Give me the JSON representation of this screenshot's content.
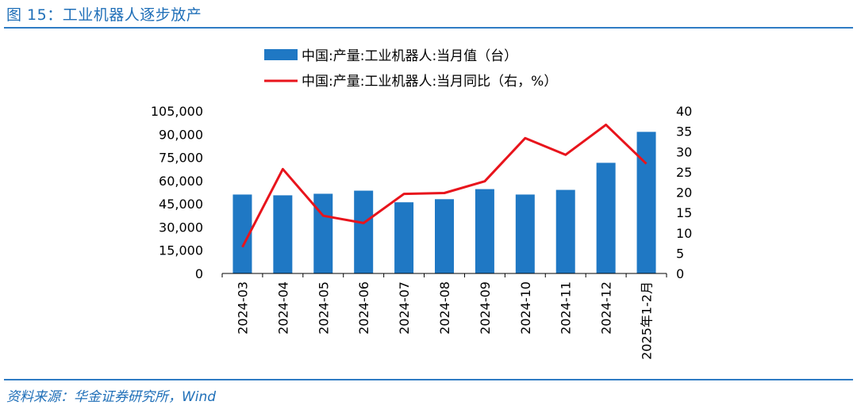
{
  "header": {
    "title": "图 15：工业机器人逐步放产"
  },
  "footer": {
    "source": "资料来源：华金证券研究所，Wind"
  },
  "colors": {
    "bar": "#1f78c4",
    "line": "#e8141c",
    "title": "#1f6fb8",
    "rule": "#2f7cc4"
  },
  "chart_data": {
    "type": "bar",
    "categories": [
      "2024-03",
      "2024-04",
      "2024-05",
      "2024-06",
      "2024-07",
      "2024-08",
      "2024-09",
      "2024-10",
      "2024-11",
      "2024-12",
      "2025年1-2月"
    ],
    "series": [
      {
        "name": "中国:产量:工业机器人:当月值（台）",
        "type": "bar",
        "axis": "left",
        "values": [
          51000,
          50500,
          51500,
          53500,
          46000,
          48000,
          54500,
          51000,
          54000,
          71500,
          91500
        ]
      },
      {
        "name": "中国:产量:工业机器人:当月同比（右，%）",
        "type": "line",
        "axis": "right",
        "values": [
          6.5,
          25.7,
          14.2,
          12.4,
          19.6,
          19.8,
          22.7,
          33.3,
          29.2,
          36.6,
          27.0
        ]
      }
    ],
    "ylim": [
      0,
      105000
    ],
    "yticks": [
      "105,000",
      "90,000",
      "75,000",
      "60,000",
      "45,000",
      "30,000",
      "15,000",
      "0"
    ],
    "y2lim": [
      0,
      40
    ],
    "y2ticks": [
      "40",
      "35",
      "30",
      "25",
      "20",
      "15",
      "10",
      "5",
      "0"
    ],
    "legend": "top-center",
    "grid": false
  }
}
